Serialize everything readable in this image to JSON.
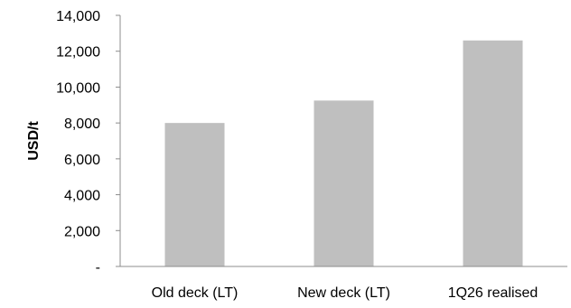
{
  "chart_data": {
    "type": "bar",
    "categories": [
      "Old deck (LT)",
      "New deck (LT)",
      "1Q26 realised"
    ],
    "values": [
      8000,
      9250,
      12600
    ],
    "title": "",
    "xlabel": "",
    "ylabel": "USD/t",
    "ylim": [
      0,
      14000
    ],
    "yticks": [
      0,
      2000,
      4000,
      6000,
      8000,
      10000,
      12000,
      14000
    ],
    "ytick_labels": [
      "-",
      "2,000",
      "4,000",
      "6,000",
      "8,000",
      "10,000",
      "12,000",
      "14,000"
    ],
    "grid": false,
    "legend": "none",
    "bar_color": "#bfbfbf",
    "axis_color": "#8c8c8c"
  }
}
